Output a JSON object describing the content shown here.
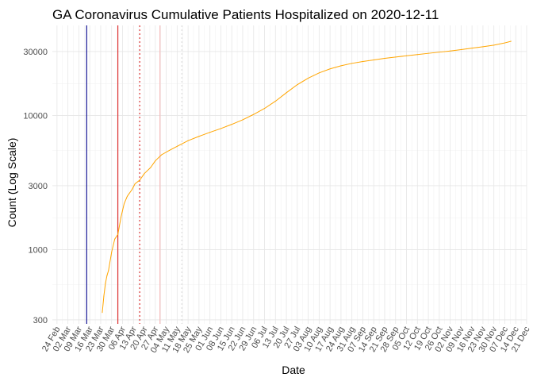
{
  "chart_data": {
    "type": "line",
    "title": "GA Coronavirus Cumulative Patients Hospitalized on 2020-12-11",
    "xlabel": "Date",
    "ylabel": "Count (Log Scale)",
    "y_scale": "log",
    "ylim": [
      280,
      47000
    ],
    "y_ticks": [
      300,
      1000,
      3000,
      10000,
      30000
    ],
    "y_tick_labels": [
      "300",
      "1000",
      "3000",
      "10000",
      "30000"
    ],
    "xlim": [
      "2020-02-21",
      "2020-12-21"
    ],
    "x_ticks": [
      "2020-02-24",
      "2020-03-02",
      "2020-03-09",
      "2020-03-16",
      "2020-03-23",
      "2020-03-30",
      "2020-04-06",
      "2020-04-13",
      "2020-04-20",
      "2020-04-27",
      "2020-05-04",
      "2020-05-11",
      "2020-05-18",
      "2020-05-25",
      "2020-06-01",
      "2020-06-08",
      "2020-06-15",
      "2020-06-22",
      "2020-06-29",
      "2020-07-06",
      "2020-07-13",
      "2020-07-20",
      "2020-07-27",
      "2020-08-03",
      "2020-08-10",
      "2020-08-17",
      "2020-08-24",
      "2020-08-31",
      "2020-09-07",
      "2020-09-14",
      "2020-09-21",
      "2020-09-28",
      "2020-10-05",
      "2020-10-12",
      "2020-10-19",
      "2020-10-26",
      "2020-11-02",
      "2020-11-09",
      "2020-11-16",
      "2020-11-23",
      "2020-11-30",
      "2020-12-07",
      "2020-12-14",
      "2020-12-21"
    ],
    "x_tick_labels": [
      "24 Feb",
      "02 Mar",
      "09 Mar",
      "16 Mar",
      "23 Mar",
      "30 Mar",
      "06 Apr",
      "13 Apr",
      "20 Apr",
      "27 Apr",
      "04 May",
      "11 May",
      "18 May",
      "25 May",
      "01 Jun",
      "08 Jun",
      "15 Jun",
      "22 Jun",
      "29 Jun",
      "06 Jul",
      "13 Jul",
      "20 Jul",
      "27 Jul",
      "03 Aug",
      "10 Aug",
      "17 Aug",
      "24 Aug",
      "31 Aug",
      "07 Sep",
      "14 Sep",
      "21 Sep",
      "28 Sep",
      "05 Oct",
      "12 Oct",
      "19 Oct",
      "26 Oct",
      "02 Nov",
      "09 Nov",
      "16 Nov",
      "23 Nov",
      "30 Nov",
      "07 Dec",
      "14 Dec",
      "21 Dec"
    ],
    "grid": true,
    "vlines": [
      {
        "x": "2020-03-14",
        "color": "#00008b",
        "style": "solid"
      },
      {
        "x": "2020-04-03",
        "color": "#dd2222",
        "style": "solid"
      },
      {
        "x": "2020-04-17",
        "color": "#dd2222",
        "style": "dotted"
      },
      {
        "x": "2020-04-30",
        "color": "#f4b6b6",
        "style": "solid"
      },
      {
        "x": "2020-05-14",
        "color": "#d8d8d8",
        "style": "dotted"
      }
    ],
    "series": [
      {
        "color": "#ffa500",
        "points": [
          [
            "2020-03-24",
            340
          ],
          [
            "2020-03-25",
            450
          ],
          [
            "2020-03-26",
            560
          ],
          [
            "2020-03-27",
            640
          ],
          [
            "2020-03-28",
            700
          ],
          [
            "2020-03-30",
            960
          ],
          [
            "2020-04-01",
            1200
          ],
          [
            "2020-04-03",
            1300
          ],
          [
            "2020-04-05",
            1750
          ],
          [
            "2020-04-07",
            2200
          ],
          [
            "2020-04-09",
            2500
          ],
          [
            "2020-04-12",
            2800
          ],
          [
            "2020-04-14",
            3100
          ],
          [
            "2020-04-17",
            3300
          ],
          [
            "2020-04-20",
            3700
          ],
          [
            "2020-04-24",
            4100
          ],
          [
            "2020-04-27",
            4600
          ],
          [
            "2020-05-01",
            5100
          ],
          [
            "2020-05-06",
            5500
          ],
          [
            "2020-05-11",
            5900
          ],
          [
            "2020-05-18",
            6500
          ],
          [
            "2020-05-25",
            7000
          ],
          [
            "2020-06-01",
            7500
          ],
          [
            "2020-06-08",
            8000
          ],
          [
            "2020-06-15",
            8600
          ],
          [
            "2020-06-22",
            9300
          ],
          [
            "2020-06-29",
            10200
          ],
          [
            "2020-07-06",
            11300
          ],
          [
            "2020-07-13",
            12800
          ],
          [
            "2020-07-20",
            14800
          ],
          [
            "2020-07-27",
            17000
          ],
          [
            "2020-08-03",
            19000
          ],
          [
            "2020-08-10",
            20800
          ],
          [
            "2020-08-17",
            22300
          ],
          [
            "2020-08-24",
            23500
          ],
          [
            "2020-08-31",
            24500
          ],
          [
            "2020-09-07",
            25300
          ],
          [
            "2020-09-14",
            26000
          ],
          [
            "2020-09-21",
            26700
          ],
          [
            "2020-09-28",
            27300
          ],
          [
            "2020-10-05",
            27900
          ],
          [
            "2020-10-12",
            28500
          ],
          [
            "2020-10-19",
            29100
          ],
          [
            "2020-10-26",
            29700
          ],
          [
            "2020-11-02",
            30300
          ],
          [
            "2020-11-09",
            31000
          ],
          [
            "2020-11-16",
            31800
          ],
          [
            "2020-11-23",
            32600
          ],
          [
            "2020-11-30",
            33500
          ],
          [
            "2020-12-07",
            34800
          ],
          [
            "2020-12-11",
            35800
          ]
        ]
      }
    ]
  }
}
